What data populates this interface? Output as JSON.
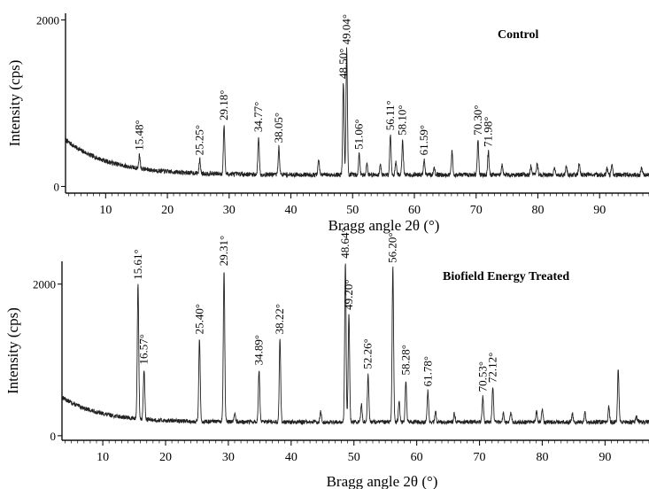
{
  "chart_data": [
    {
      "type": "line",
      "panel_label": "Control",
      "xlabel": "Bragg angle 2θ (°)",
      "ylabel": "Intensity (cps)",
      "xlim": [
        3.5,
        98
      ],
      "ylim": [
        -80,
        2080
      ],
      "x_ticks": [
        10,
        20,
        30,
        40,
        50,
        60,
        70,
        80,
        90
      ],
      "y_ticks": [
        0,
        2000
      ],
      "grid": false,
      "background": {
        "base": 140,
        "hump_amp": 420,
        "hump_decay": 7,
        "x0": 3.5
      },
      "peaks": [
        {
          "x": 15.48,
          "y": 380,
          "label": "15.48°"
        },
        {
          "x": 25.25,
          "y": 320,
          "label": "25.25°"
        },
        {
          "x": 29.18,
          "y": 740,
          "label": "29.18°"
        },
        {
          "x": 34.77,
          "y": 600,
          "label": "34.77°"
        },
        {
          "x": 38.05,
          "y": 470,
          "label": "38.05°"
        },
        {
          "x": 48.5,
          "y": 1240,
          "label": "48.50°"
        },
        {
          "x": 49.04,
          "y": 1650,
          "label": "49.04°"
        },
        {
          "x": 51.06,
          "y": 390,
          "label": "51.06°"
        },
        {
          "x": 56.11,
          "y": 620,
          "label": "56.11°"
        },
        {
          "x": 58.1,
          "y": 560,
          "label": "58.10°"
        },
        {
          "x": 61.59,
          "y": 320,
          "label": "61.59°"
        },
        {
          "x": 70.3,
          "y": 560,
          "label": "70.30°"
        },
        {
          "x": 71.98,
          "y": 420,
          "label": "71.98°"
        }
      ],
      "minor_peaks": [
        {
          "x": 44.5,
          "y": 320
        },
        {
          "x": 52.3,
          "y": 280
        },
        {
          "x": 54.5,
          "y": 260
        },
        {
          "x": 57.0,
          "y": 300
        },
        {
          "x": 63.2,
          "y": 240
        },
        {
          "x": 66.1,
          "y": 420
        },
        {
          "x": 74.2,
          "y": 260
        },
        {
          "x": 78.9,
          "y": 250
        },
        {
          "x": 79.9,
          "y": 280
        },
        {
          "x": 82.7,
          "y": 240
        },
        {
          "x": 84.6,
          "y": 250
        },
        {
          "x": 86.7,
          "y": 280
        },
        {
          "x": 91.2,
          "y": 220
        },
        {
          "x": 92.0,
          "y": 260
        },
        {
          "x": 96.8,
          "y": 220
        }
      ]
    },
    {
      "type": "line",
      "panel_label": "Biofield Energy Treated",
      "xlabel": "Bragg angle 2θ (°)",
      "ylabel": "Intensity (cps)",
      "xlim": [
        3.5,
        97
      ],
      "ylim": [
        -60,
        2300
      ],
      "x_ticks": [
        10,
        20,
        30,
        40,
        50,
        60,
        70,
        80,
        90
      ],
      "y_ticks": [
        0,
        2000
      ],
      "grid": false,
      "background": {
        "base": 180,
        "hump_amp": 330,
        "hump_decay": 6,
        "x0": 3.5
      },
      "peaks": [
        {
          "x": 15.61,
          "y": 2000,
          "label": "15.61°"
        },
        {
          "x": 16.57,
          "y": 880,
          "label": "16.57°"
        },
        {
          "x": 25.4,
          "y": 1280,
          "label": "25.40°"
        },
        {
          "x": 29.31,
          "y": 2180,
          "label": "29.31°"
        },
        {
          "x": 34.89,
          "y": 870,
          "label": "34.89°"
        },
        {
          "x": 38.22,
          "y": 1280,
          "label": "38.22°"
        },
        {
          "x": 48.64,
          "y": 2280,
          "label": "48.64°"
        },
        {
          "x": 49.2,
          "y": 1600,
          "label": "49.20°"
        },
        {
          "x": 52.26,
          "y": 820,
          "label": "52.26°"
        },
        {
          "x": 56.2,
          "y": 2220,
          "label": "56.20°"
        },
        {
          "x": 58.28,
          "y": 740,
          "label": "58.28°"
        },
        {
          "x": 61.78,
          "y": 590,
          "label": "61.78°"
        },
        {
          "x": 70.53,
          "y": 520,
          "label": "70.53°"
        },
        {
          "x": 72.12,
          "y": 640,
          "label": "72.12°"
        }
      ],
      "minor_peaks": [
        {
          "x": 31.0,
          "y": 300
        },
        {
          "x": 44.7,
          "y": 330
        },
        {
          "x": 51.2,
          "y": 420
        },
        {
          "x": 57.2,
          "y": 460
        },
        {
          "x": 63.0,
          "y": 320
        },
        {
          "x": 66.0,
          "y": 300
        },
        {
          "x": 73.8,
          "y": 290
        },
        {
          "x": 75.0,
          "y": 300
        },
        {
          "x": 79.1,
          "y": 320
        },
        {
          "x": 80.0,
          "y": 350
        },
        {
          "x": 84.8,
          "y": 290
        },
        {
          "x": 86.8,
          "y": 300
        },
        {
          "x": 90.6,
          "y": 380
        },
        {
          "x": 92.1,
          "y": 880
        },
        {
          "x": 95.0,
          "y": 260
        }
      ]
    }
  ]
}
